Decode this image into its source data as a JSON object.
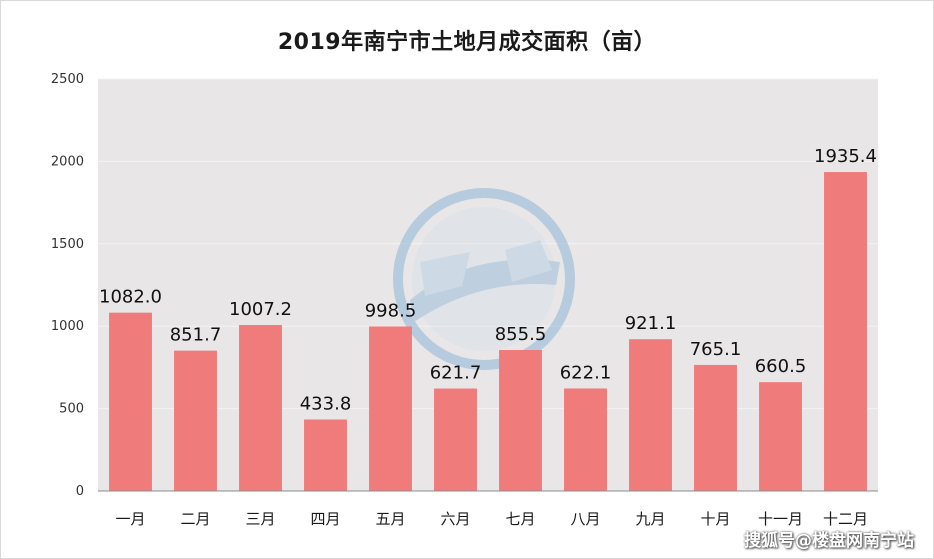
{
  "chart_data": {
    "type": "bar",
    "title": "2019年南宁市土地月成交面积（亩）",
    "categories": [
      "一月",
      "二月",
      "三月",
      "四月",
      "五月",
      "六月",
      "七月",
      "八月",
      "九月",
      "十月",
      "十一月",
      "十二月"
    ],
    "values": [
      1082.0,
      851.7,
      1007.2,
      433.8,
      998.5,
      621.7,
      855.5,
      622.1,
      921.1,
      765.1,
      660.5,
      1935.4
    ],
    "data_labels": [
      "1082.0",
      "851.7",
      "1007.2",
      "433.8",
      "998.5",
      "621.7",
      "855.5",
      "622.1",
      "921.1",
      "765.1",
      "660.5",
      "1935.4"
    ],
    "yticks": [
      "0",
      "500",
      "1000",
      "1500",
      "2000",
      "2500"
    ],
    "ylim": [
      0,
      2500
    ],
    "grid": true,
    "legend": "none",
    "colors": {
      "bar": "#f07b7b",
      "plot_bg": "#e8e6e6",
      "grid": "#f4f3f3",
      "axis": "#8c8c8c"
    }
  },
  "watermark": "搜狐号@楼盘网南宁站"
}
